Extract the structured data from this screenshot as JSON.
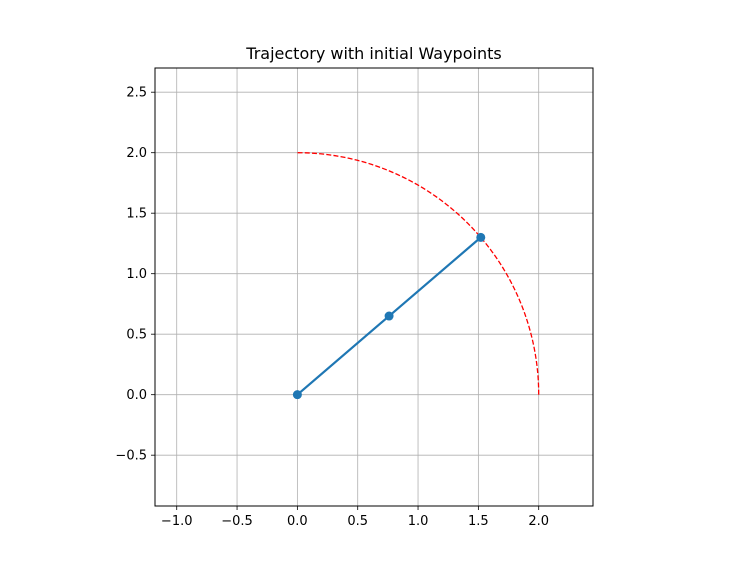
{
  "chart_data": {
    "type": "line",
    "title": "Trajectory with initial Waypoints",
    "xlabel": "",
    "ylabel": "",
    "xlim": [
      -1.18,
      2.45
    ],
    "ylim": [
      -0.92,
      2.7
    ],
    "x_ticks": [
      -1.0,
      -0.5,
      0.0,
      0.5,
      1.0,
      1.5,
      2.0
    ],
    "x_tick_labels": [
      "−1.0",
      "−0.5",
      "0.0",
      "0.5",
      "1.0",
      "1.5",
      "2.0"
    ],
    "y_ticks": [
      -0.5,
      0.0,
      0.5,
      1.0,
      1.5,
      2.0,
      2.5
    ],
    "y_tick_labels": [
      "−0.5",
      "0.0",
      "0.5",
      "1.0",
      "1.5",
      "2.0",
      "2.5"
    ],
    "grid": true,
    "series": [
      {
        "style": "solid line with circle markers",
        "color": "#1f77b4",
        "x": [
          0.0,
          0.76,
          1.52
        ],
        "y": [
          0.0,
          0.65,
          1.3
        ]
      },
      {
        "style": "dashed arc",
        "color": "#ff0000",
        "shape": "quarter circle centered at origin",
        "radius": 2.0,
        "angle_range_deg": [
          0,
          90
        ]
      }
    ]
  }
}
